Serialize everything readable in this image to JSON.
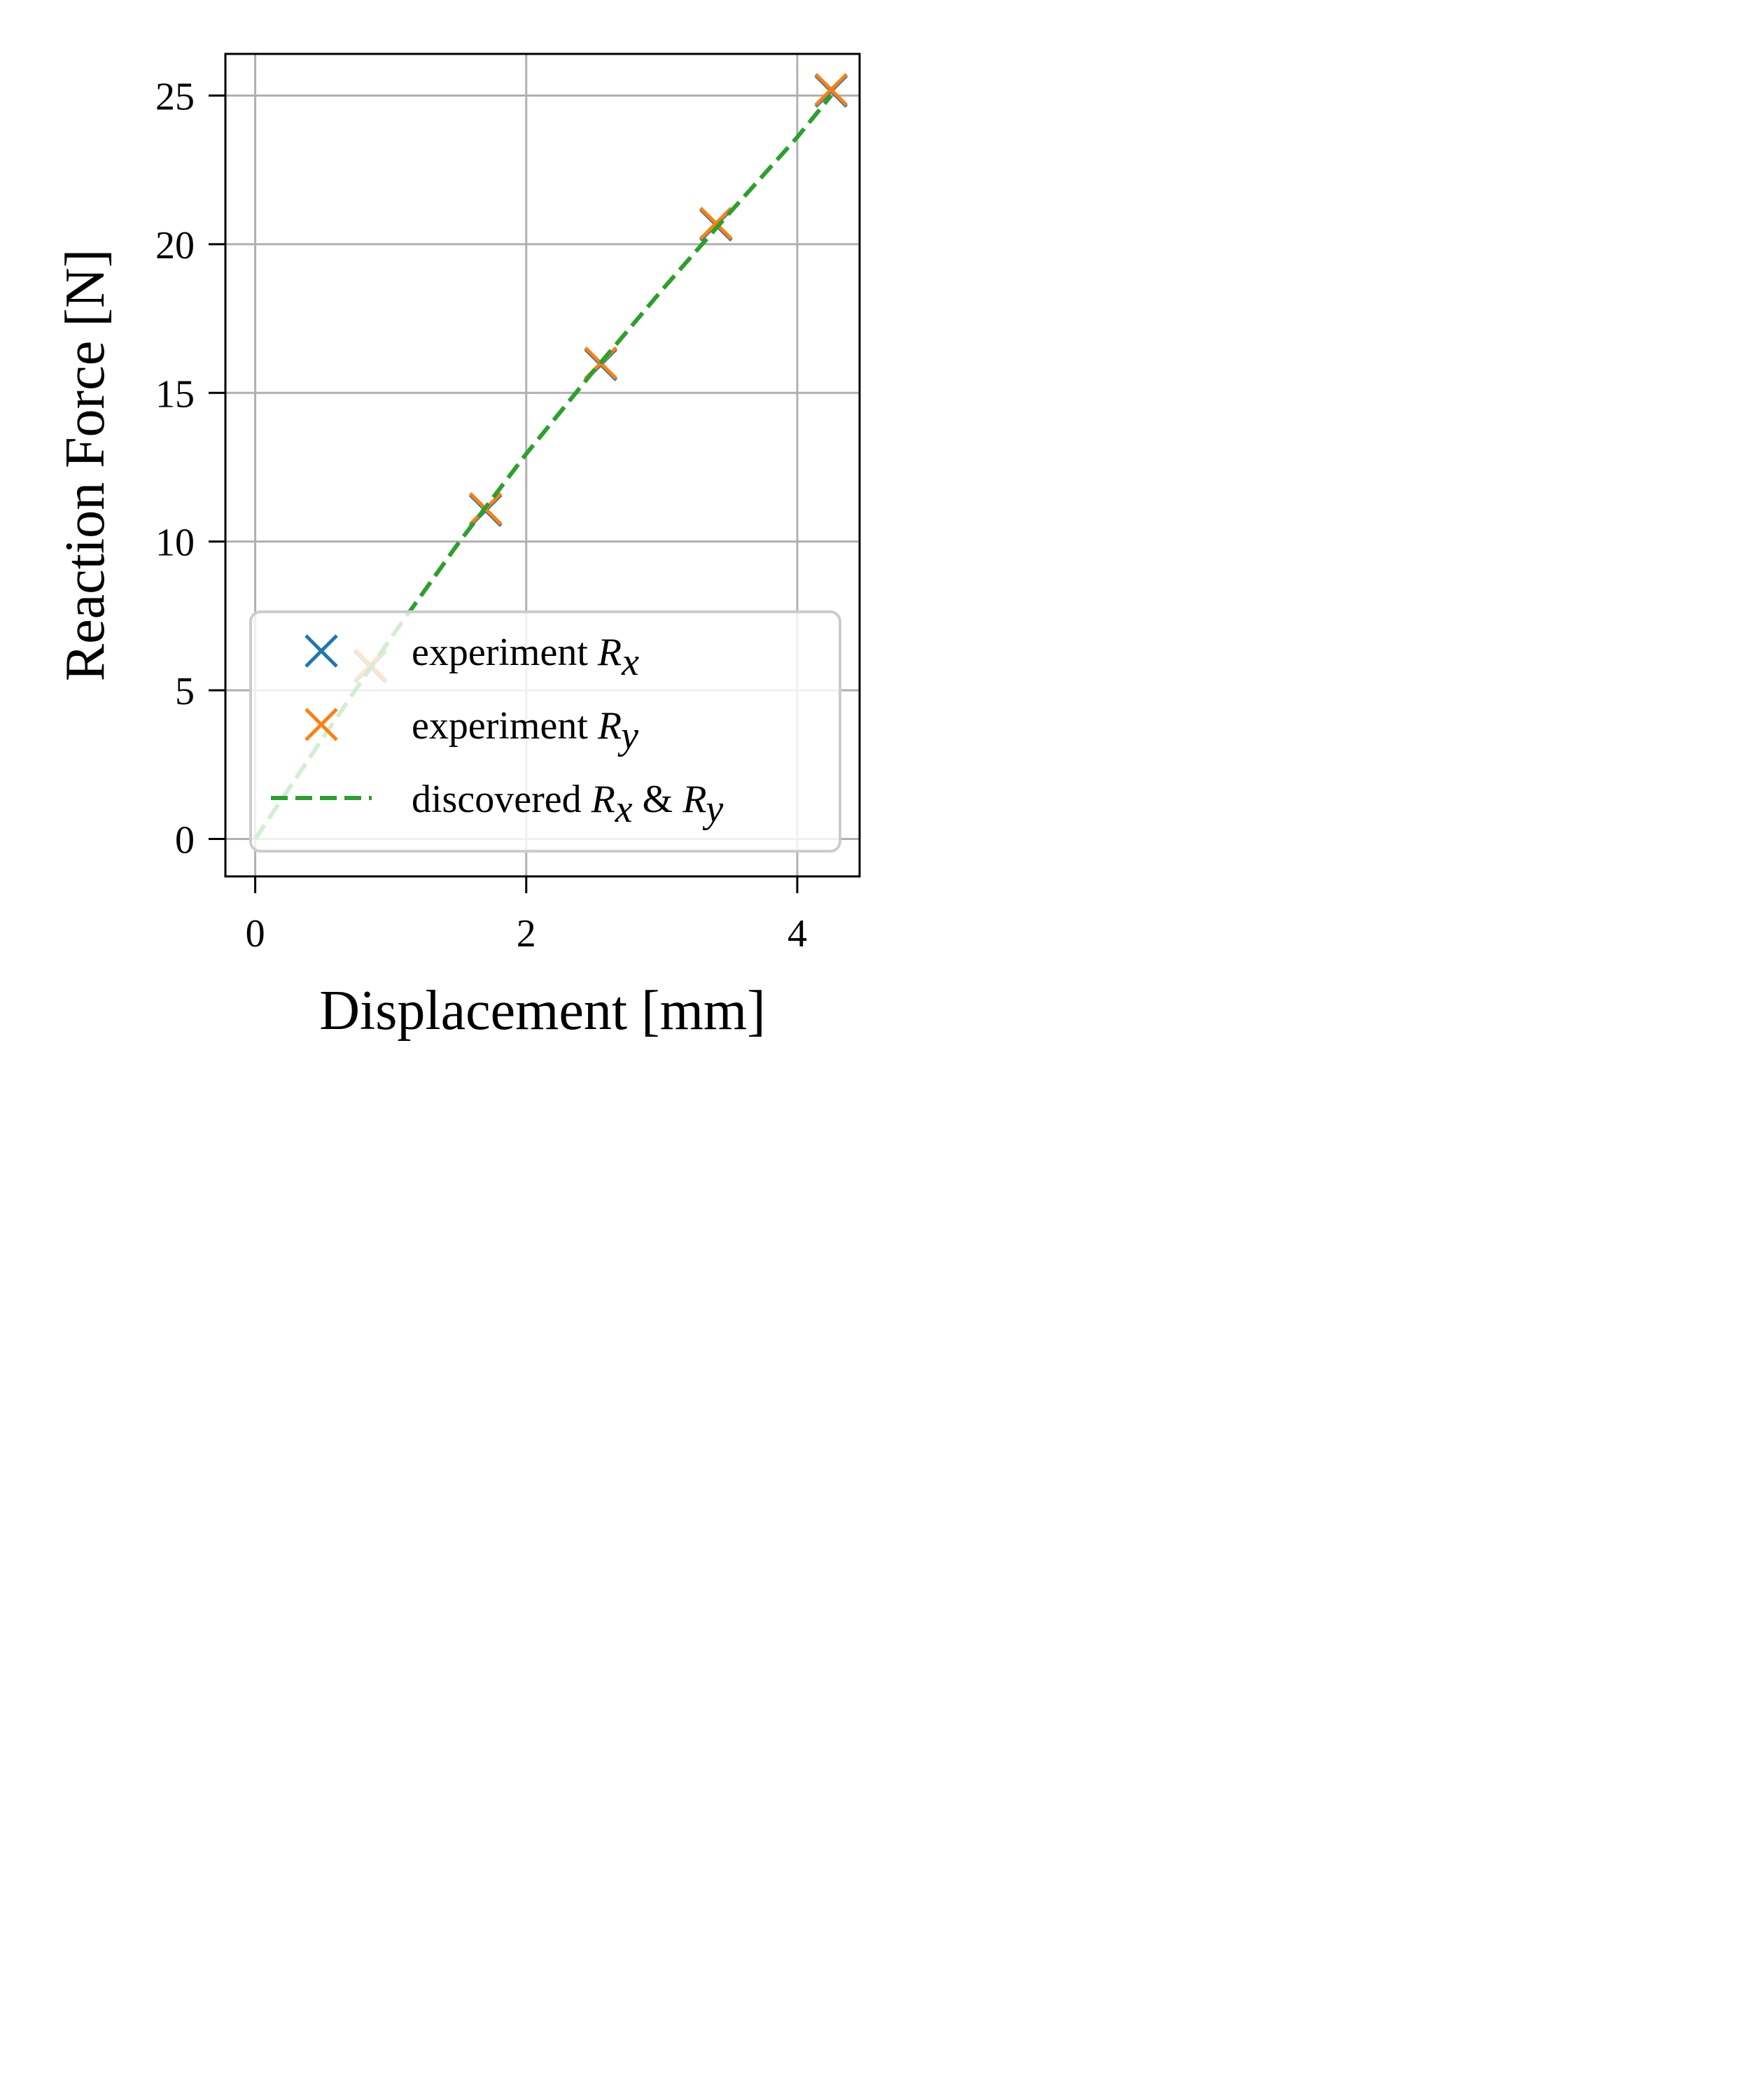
{
  "chart_data": {
    "type": "scatter",
    "xlabel": "Displacement [mm]",
    "ylabel": "Reaction Force [N]",
    "xlim": [
      -0.22,
      4.46
    ],
    "ylim": [
      -1.26,
      26.4
    ],
    "xticks": [
      0,
      2,
      4
    ],
    "yticks": [
      0,
      5,
      10,
      15,
      20,
      25
    ],
    "grid": true,
    "legend_position": "lower-right",
    "series": [
      {
        "kind": "scatter",
        "marker": "x",
        "color": "#1f77b4",
        "label_prefix": "experiment ",
        "label_math": "R",
        "label_sub": "x",
        "x": [
          0.85,
          1.7,
          2.55,
          3.4,
          4.25
        ],
        "y": [
          5.8,
          11.05,
          15.95,
          20.65,
          25.15
        ]
      },
      {
        "kind": "scatter",
        "marker": "x",
        "color": "#ff7f0e",
        "label_prefix": "experiment ",
        "label_math": "R",
        "label_sub": "y",
        "x": [
          0.85,
          1.7,
          2.55,
          3.4,
          4.25
        ],
        "y": [
          5.85,
          11.1,
          16.0,
          20.7,
          25.2
        ]
      },
      {
        "kind": "line",
        "dash": "dashed",
        "color": "#2ca02c",
        "label_prefix": "discovered ",
        "label_math": "R",
        "label_sub": "x",
        "label_mid": " & ",
        "label_math2": "R",
        "label_sub2": "y",
        "x": [
          0,
          0.5,
          1.0,
          1.5,
          2.0,
          2.5,
          3.0,
          3.5,
          4.0,
          4.25
        ],
        "y": [
          0,
          3.4,
          6.75,
          9.95,
          12.95,
          15.75,
          18.45,
          21.05,
          23.6,
          25.0
        ]
      }
    ]
  }
}
